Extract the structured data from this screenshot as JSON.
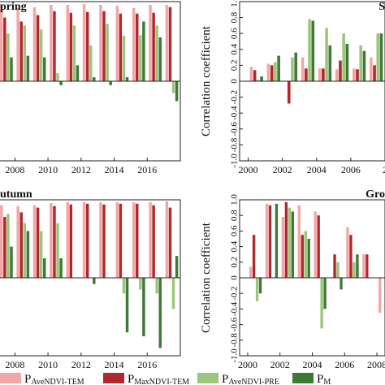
{
  "panels": [
    {
      "label": "pring",
      "ylabel": "",
      "x_ticks": [
        "2008",
        "2010",
        "2012",
        "2014",
        "2016"
      ],
      "y_ticks": []
    },
    {
      "label": "S",
      "ylabel": "Correlation coefficient",
      "x_ticks": [
        "2000",
        "2002",
        "2004",
        "2006",
        "2"
      ],
      "y_ticks": [
        "1.0",
        "0.8",
        "0.6",
        "0.4",
        "0.2",
        "0",
        "-0.2",
        "-0.4",
        "-0.6",
        "-0.8",
        "-1.0"
      ]
    },
    {
      "label": "utumn",
      "ylabel": "",
      "x_ticks": [
        "2008",
        "2010",
        "2012",
        "2014",
        "2016"
      ],
      "y_ticks": []
    },
    {
      "label": "Gro",
      "ylabel": "Correlation coefficient",
      "x_ticks": [
        "2000",
        "2002",
        "2004",
        "2006",
        "2008"
      ],
      "y_ticks": [
        "1.0",
        "0.8",
        "0.6",
        "0.4",
        "0.2",
        "0",
        "-0.2",
        "-0.4",
        "-0.6",
        "-0.8",
        "-1.0"
      ]
    }
  ],
  "legend": [
    {
      "main": "P",
      "sub": "AveNDVI-TEM",
      "color": "#f4a6a6"
    },
    {
      "main": "P",
      "sub": "MaxNDVI-TEM",
      "color": "#b0282c"
    },
    {
      "main": "P",
      "sub": "AveNDVI-PRE",
      "color": "#9cc67c"
    },
    {
      "main": "P",
      "sub": "M",
      "color": "#3e7a35"
    }
  ],
  "chart_data": [
    {
      "type": "bar",
      "title": "pring",
      "ylim": [
        -1,
        1
      ],
      "years": [
        2007,
        2008,
        2009,
        2010,
        2011,
        2012,
        2013,
        2014,
        2015,
        2016,
        2017
      ],
      "series": [
        {
          "color": "#f4a6a6",
          "values": [
            0.95,
            0.92,
            0.93,
            0.96,
            0.96,
            0.97,
            0.96,
            0.95,
            0.92,
            0.96,
            0.96
          ]
        },
        {
          "color": "#b0282c",
          "values": [
            0.8,
            0.75,
            0.83,
            0.88,
            0.86,
            0.87,
            0.88,
            0.85,
            0.85,
            0.86,
            0.93
          ]
        },
        {
          "color": "#9cc67c",
          "values": [
            0.6,
            0.7,
            0.65,
            0.1,
            0.7,
            0.45,
            0.72,
            0.57,
            0.58,
            0.7,
            -0.15
          ]
        },
        {
          "color": "#3e7a35",
          "values": [
            0.3,
            0.32,
            0.3,
            -0.05,
            0.2,
            0.05,
            -0.05,
            0.05,
            0.75,
            0.55,
            -0.25
          ]
        }
      ]
    },
    {
      "type": "bar",
      "title": "S",
      "ylim": [
        -1,
        1
      ],
      "years": [
        2000,
        2001,
        2002,
        2003,
        2004,
        2005,
        2006,
        2007
      ],
      "series": [
        {
          "color": "#f4a6a6",
          "values": [
            0.18,
            0.22,
            0.0,
            0.3,
            0.16,
            0.15,
            0.16,
            0.3
          ]
        },
        {
          "color": "#b0282c",
          "values": [
            0.14,
            0.2,
            -0.28,
            0.16,
            0.16,
            0.26,
            0.15,
            0.2
          ]
        },
        {
          "color": "#9cc67c",
          "values": [
            0.02,
            0.24,
            0.3,
            0.78,
            0.67,
            0.6,
            0.45,
            0.6
          ]
        },
        {
          "color": "#3e7a35",
          "values": [
            0.06,
            0.32,
            0.36,
            0.76,
            0.45,
            0.47,
            0.38,
            0.6
          ]
        }
      ]
    },
    {
      "type": "bar",
      "title": "utumn",
      "ylim": [
        -1,
        1
      ],
      "years": [
        2007,
        2008,
        2009,
        2010,
        2011,
        2012,
        2013,
        2014,
        2015,
        2016,
        2017
      ],
      "series": [
        {
          "color": "#f4a6a6",
          "values": [
            0.93,
            0.92,
            0.93,
            0.96,
            0.97,
            0.97,
            0.97,
            0.97,
            0.97,
            0.97,
            0.98
          ]
        },
        {
          "color": "#b0282c",
          "values": [
            0.78,
            0.84,
            0.9,
            0.92,
            0.94,
            0.95,
            0.94,
            0.95,
            0.95,
            0.93,
            0.9
          ]
        },
        {
          "color": "#9cc67c",
          "values": [
            0.82,
            0.7,
            0.6,
            0.7,
            0.0,
            0.0,
            0.0,
            -0.2,
            -0.15,
            -0.2,
            -0.4
          ]
        },
        {
          "color": "#3e7a35",
          "values": [
            0.4,
            0.6,
            0.25,
            0.25,
            0.0,
            -0.08,
            0.0,
            -0.7,
            -0.75,
            -0.9,
            0.28
          ]
        }
      ]
    },
    {
      "type": "bar",
      "title": "Gro",
      "ylim": [
        -1,
        1
      ],
      "years": [
        2000,
        2001,
        2002,
        2003,
        2004,
        2005,
        2006,
        2007,
        2008
      ],
      "series": [
        {
          "color": "#f4a6a6",
          "values": [
            0.14,
            0.95,
            0.78,
            0.93,
            0.85,
            0.0,
            0.65,
            0.3,
            -0.45
          ]
        },
        {
          "color": "#b0282c",
          "values": [
            0.55,
            0.93,
            0.97,
            0.55,
            0.8,
            0.3,
            0.55,
            0.3,
            0.0
          ]
        },
        {
          "color": "#9cc67c",
          "values": [
            -0.3,
            0.0,
            0.9,
            0.6,
            -0.65,
            0.2,
            0.2,
            0.0,
            0.0
          ]
        },
        {
          "color": "#3e7a35",
          "values": [
            -0.2,
            0.95,
            0.85,
            0.5,
            -0.4,
            -0.15,
            0.3,
            0.0,
            -0.5
          ]
        }
      ]
    }
  ]
}
